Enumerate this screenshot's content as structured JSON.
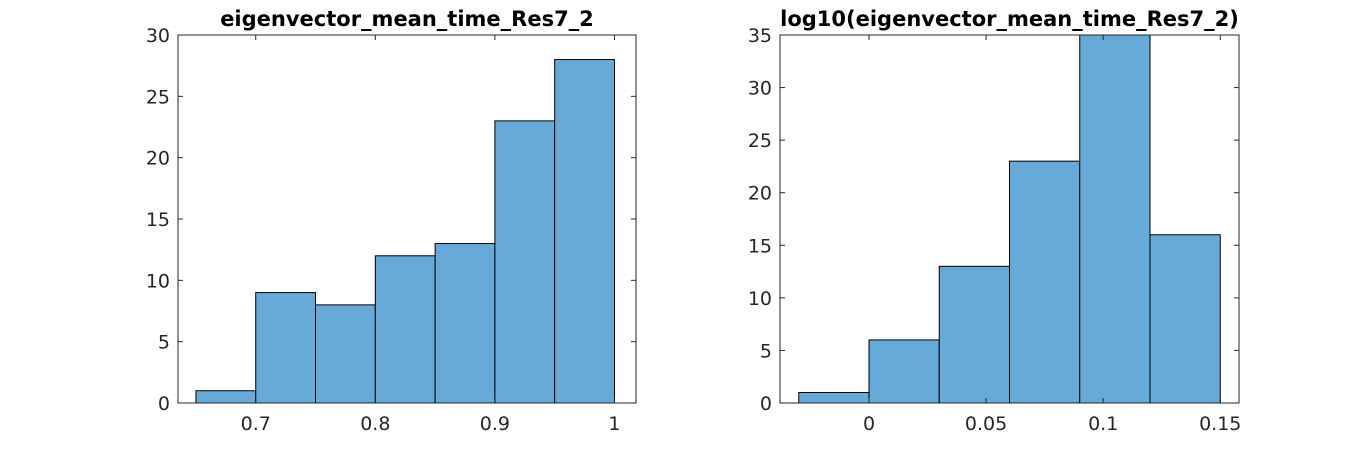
{
  "chart_data": [
    {
      "type": "bar",
      "title": "eigenvector_mean_time_Res7_2",
      "xlabel": "",
      "ylabel": "",
      "bin_edges": [
        0.65,
        0.7,
        0.75,
        0.8,
        0.85,
        0.9,
        0.95,
        1.0
      ],
      "values": [
        1,
        9,
        8,
        12,
        13,
        23,
        28
      ],
      "xlim": [
        0.635,
        1.018
      ],
      "ylim": [
        0,
        30
      ],
      "xticks": [
        0.7,
        0.8,
        0.9,
        1
      ],
      "xtick_labels": [
        "0.7",
        "0.8",
        "0.9",
        "1"
      ],
      "yticks": [
        0,
        5,
        10,
        15,
        20,
        25,
        30
      ],
      "ytick_labels": [
        "0",
        "5",
        "10",
        "15",
        "20",
        "25",
        "30"
      ],
      "grid": false,
      "bar_color": "#65aad8"
    },
    {
      "type": "bar",
      "title": "log10(eigenvector_mean_time_Res7_2)",
      "xlabel": "",
      "ylabel": "",
      "bin_edges": [
        -0.03,
        0.0,
        0.03,
        0.06,
        0.09,
        0.12,
        0.15
      ],
      "values": [
        1,
        6,
        13,
        23,
        35,
        16
      ],
      "xlim": [
        -0.038,
        0.158
      ],
      "ylim": [
        0,
        35
      ],
      "xticks": [
        0,
        0.05,
        0.1,
        0.15
      ],
      "xtick_labels": [
        "0",
        "0.05",
        "0.1",
        "0.15"
      ],
      "yticks": [
        0,
        5,
        10,
        15,
        20,
        25,
        30,
        35
      ],
      "ytick_labels": [
        "0",
        "5",
        "10",
        "15",
        "20",
        "25",
        "30",
        "35"
      ],
      "grid": false,
      "bar_color": "#65aad8"
    }
  ]
}
